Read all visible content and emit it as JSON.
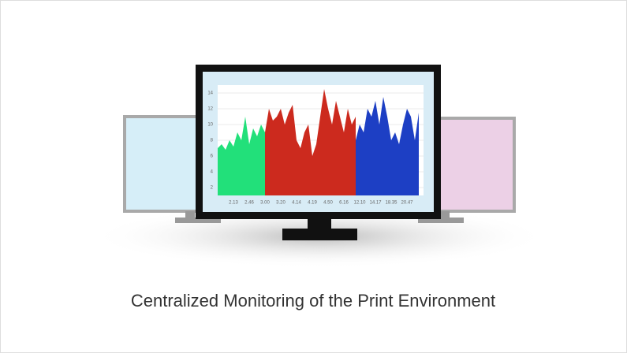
{
  "caption": "Centralized Monitoring of the Print Environment",
  "chart_data": {
    "type": "area",
    "categories": [
      null,
      null,
      null,
      null,
      "2.13",
      null,
      null,
      null,
      "2.46",
      null,
      null,
      null,
      "3.00",
      null,
      null,
      null,
      "3.20",
      null,
      null,
      null,
      "4.14",
      null,
      null,
      null,
      "4.19",
      null,
      null,
      null,
      "4.50",
      null,
      null,
      null,
      "6.16",
      null,
      null,
      null,
      "12.10",
      null,
      null,
      null,
      "14.17",
      null,
      null,
      null,
      "18.35",
      null,
      null,
      null,
      "20.47",
      null,
      null,
      null
    ],
    "series": [
      {
        "color": "#22e07a",
        "values": [
          7,
          7.5,
          6.8,
          8,
          7.2,
          9,
          8,
          11,
          7.5,
          9.5,
          8.5,
          10,
          9,
          null,
          null,
          null,
          null,
          null,
          null,
          null,
          null,
          null,
          null,
          null,
          null,
          null,
          null,
          null,
          null,
          null,
          null,
          null,
          null,
          null,
          null,
          null,
          null,
          null,
          null,
          null,
          null,
          null,
          null,
          null,
          null,
          null,
          null,
          null,
          null,
          null,
          null,
          null
        ]
      },
      {
        "color": "#cc2a1e",
        "values": [
          null,
          null,
          null,
          null,
          null,
          null,
          null,
          null,
          null,
          null,
          null,
          null,
          9,
          12,
          10.5,
          11,
          12,
          10,
          11.5,
          12.5,
          8,
          7,
          9,
          10,
          6,
          7.5,
          11,
          14.5,
          12,
          10,
          13,
          11,
          9,
          12,
          10,
          11,
          null,
          null,
          null,
          null,
          null,
          null,
          null,
          null,
          null,
          null,
          null,
          null,
          null,
          null,
          null,
          null
        ]
      },
      {
        "color": "#1d3fc4",
        "values": [
          null,
          null,
          null,
          null,
          null,
          null,
          null,
          null,
          null,
          null,
          null,
          null,
          null,
          null,
          null,
          null,
          null,
          null,
          null,
          null,
          null,
          null,
          null,
          null,
          null,
          null,
          null,
          null,
          null,
          null,
          null,
          null,
          null,
          null,
          null,
          8,
          10,
          9,
          12,
          11,
          13,
          10,
          13.5,
          11,
          8,
          9,
          7.5,
          10,
          12,
          11,
          8,
          11.5
        ]
      }
    ],
    "ylim": [
      1,
      15
    ],
    "yticks": [
      2,
      4,
      6,
      8,
      10,
      12,
      14
    ],
    "grid": true
  }
}
